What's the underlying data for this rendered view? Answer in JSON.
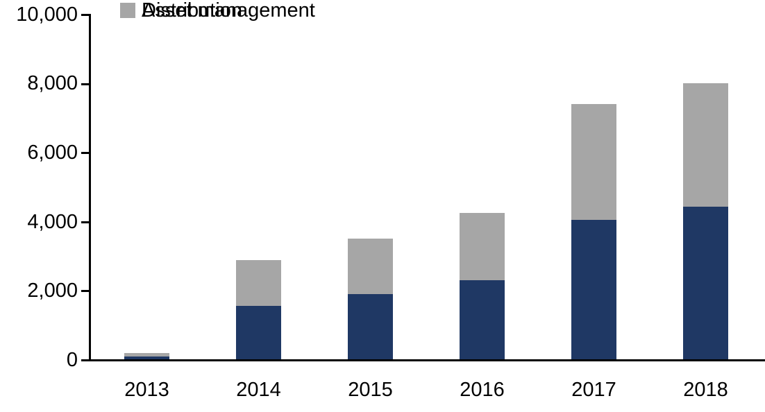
{
  "chart_data": {
    "type": "bar",
    "stacked": true,
    "title": "",
    "xlabel": "",
    "ylabel": "",
    "categories": [
      "2013",
      "2014",
      "2015",
      "2016",
      "2017",
      "2018"
    ],
    "series": [
      {
        "name": "Asset management",
        "color": "#1F3864",
        "values": [
          90,
          1550,
          1900,
          2300,
          4050,
          4430
        ]
      },
      {
        "name": "Distribution",
        "color": "#A6A6A6",
        "values": [
          100,
          1320,
          1600,
          1950,
          3350,
          3570
        ]
      }
    ],
    "totals": [
      190,
      2870,
      3500,
      4250,
      7400,
      8000
    ],
    "ylim": [
      0,
      10000
    ],
    "yticks": [
      0,
      2000,
      4000,
      6000,
      8000,
      10000
    ],
    "ytick_labels": [
      "0",
      "2,000",
      "4,000",
      "6,000",
      "8,000",
      "10,000"
    ],
    "grid": false,
    "legend_position": "top-left",
    "background_color": "#FFFFFF",
    "axis_color": "#000000",
    "text_color": "#000000"
  }
}
